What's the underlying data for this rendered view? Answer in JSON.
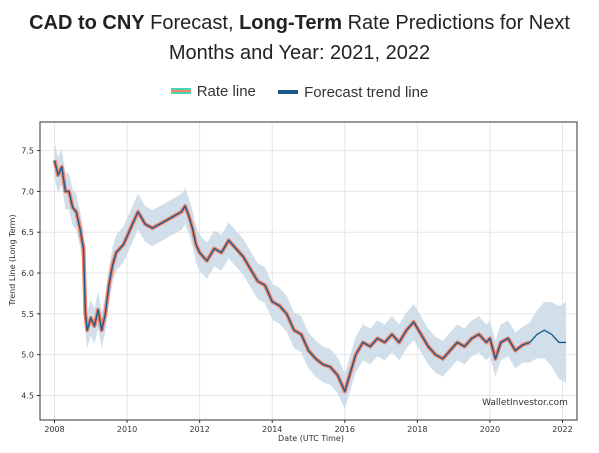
{
  "header": {
    "title_bold_1": "CAD to CNY",
    "title_text_1": " Forecast, ",
    "title_bold_2": "Long-Term",
    "title_text_2": " Rate Predictions for Next",
    "title_line2": "Months and Year: 2021, 2022"
  },
  "legend": {
    "rate_label": "Rate line",
    "forecast_label": "Forecast trend line"
  },
  "watermark": "WalletInvestor.com",
  "colors": {
    "rate": "#f4836a",
    "trend": "#1b5a8a",
    "band": "#c9d9e6",
    "grid": "#e6e6e6"
  },
  "chart_data": {
    "type": "line",
    "xlabel": "Date (UTC Time)",
    "ylabel": "Trend Line (Long Term)",
    "xlim": [
      2007.6,
      2022.4
    ],
    "ylim": [
      4.2,
      7.85
    ],
    "xticks": [
      "2008",
      "2010",
      "2012",
      "2014",
      "2016",
      "2018",
      "2020",
      "2022"
    ],
    "yticks": [
      "4.5",
      "5.0",
      "5.5",
      "6.0",
      "6.5",
      "7.0",
      "7.5"
    ],
    "grid": true,
    "legend_position": "top",
    "band_halfwidth": 0.22,
    "series": [
      {
        "name": "Rate line",
        "x": [
          2008.0,
          2008.1,
          2008.2,
          2008.3,
          2008.4,
          2008.5,
          2008.6,
          2008.7,
          2008.8,
          2008.85,
          2008.9,
          2009.0,
          2009.1,
          2009.2,
          2009.3,
          2009.4,
          2009.5,
          2009.6,
          2009.7,
          2009.8,
          2009.9,
          2010.0,
          2010.1,
          2010.2,
          2010.3,
          2010.5,
          2010.7,
          2010.9,
          2011.1,
          2011.3,
          2011.5,
          2011.6,
          2011.7,
          2011.8,
          2011.9,
          2012.0,
          2012.2,
          2012.4,
          2012.6,
          2012.8,
          2013.0,
          2013.2,
          2013.4,
          2013.6,
          2013.8,
          2014.0,
          2014.2,
          2014.4,
          2014.6,
          2014.8,
          2015.0,
          2015.2,
          2015.4,
          2015.6,
          2015.8,
          2016.0,
          2016.1,
          2016.3,
          2016.5,
          2016.7,
          2016.9,
          2017.1,
          2017.3,
          2017.5,
          2017.7,
          2017.9,
          2018.1,
          2018.3,
          2018.5,
          2018.7,
          2018.9,
          2019.1,
          2019.3,
          2019.5,
          2019.7,
          2019.9,
          2020.0,
          2020.15,
          2020.3,
          2020.5,
          2020.7,
          2020.9,
          2021.1
        ],
        "values": [
          7.38,
          7.2,
          7.3,
          7.0,
          7.0,
          6.8,
          6.75,
          6.55,
          6.3,
          5.5,
          5.3,
          5.45,
          5.35,
          5.55,
          5.3,
          5.5,
          5.85,
          6.1,
          6.25,
          6.3,
          6.35,
          6.45,
          6.55,
          6.65,
          6.75,
          6.6,
          6.55,
          6.6,
          6.65,
          6.7,
          6.75,
          6.82,
          6.7,
          6.55,
          6.35,
          6.25,
          6.15,
          6.3,
          6.25,
          6.4,
          6.3,
          6.2,
          6.05,
          5.9,
          5.85,
          5.65,
          5.6,
          5.5,
          5.3,
          5.25,
          5.05,
          4.95,
          4.88,
          4.85,
          4.75,
          4.55,
          4.7,
          5.0,
          5.15,
          5.1,
          5.2,
          5.15,
          5.25,
          5.15,
          5.3,
          5.4,
          5.25,
          5.1,
          5.0,
          4.95,
          5.05,
          5.15,
          5.1,
          5.2,
          5.25,
          5.15,
          5.2,
          4.95,
          5.15,
          5.2,
          5.05,
          5.12,
          5.15
        ]
      },
      {
        "name": "Forecast trend line",
        "x": [
          2021.1,
          2021.3,
          2021.5,
          2021.7,
          2021.9,
          2022.1
        ],
        "values": [
          5.15,
          5.25,
          5.3,
          5.25,
          5.15,
          5.15
        ]
      }
    ]
  }
}
